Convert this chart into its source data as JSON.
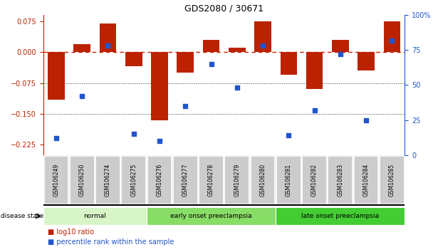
{
  "title": "GDS2080 / 30671",
  "samples": [
    "GSM106249",
    "GSM106250",
    "GSM106274",
    "GSM106275",
    "GSM106276",
    "GSM106277",
    "GSM106278",
    "GSM106279",
    "GSM106280",
    "GSM106281",
    "GSM106282",
    "GSM106283",
    "GSM106284",
    "GSM106285"
  ],
  "log10_ratio": [
    -0.115,
    0.02,
    0.07,
    -0.035,
    -0.165,
    -0.05,
    0.03,
    0.01,
    0.075,
    -0.055,
    -0.09,
    0.03,
    -0.045,
    0.075
  ],
  "percentile_rank": [
    12,
    42,
    78,
    15,
    10,
    35,
    65,
    48,
    78,
    14,
    32,
    72,
    25,
    82
  ],
  "bar_color": "#bb2200",
  "dot_color": "#2255cc",
  "zero_line_color": "#cc2200",
  "grid_line_color": "#333333",
  "ylim_left": [
    -0.25,
    0.09
  ],
  "ylim_right": [
    0,
    100
  ],
  "yticks_left": [
    0.075,
    0,
    -0.075,
    -0.15,
    -0.225
  ],
  "yticks_right": [
    100,
    75,
    50,
    25,
    0
  ],
  "groups": [
    {
      "label": "normal",
      "start": 0,
      "end": 4,
      "color": "#d8f5c8"
    },
    {
      "label": "early onset preeclampsia",
      "start": 4,
      "end": 9,
      "color": "#88dd66"
    },
    {
      "label": "late onset preeclampsia",
      "start": 9,
      "end": 14,
      "color": "#44cc33"
    }
  ],
  "legend_bar_label": "log10 ratio",
  "legend_dot_label": "percentile rank within the sample",
  "disease_state_label": "disease state",
  "background_color": "#ffffff",
  "tick_area_color": "#cccccc"
}
